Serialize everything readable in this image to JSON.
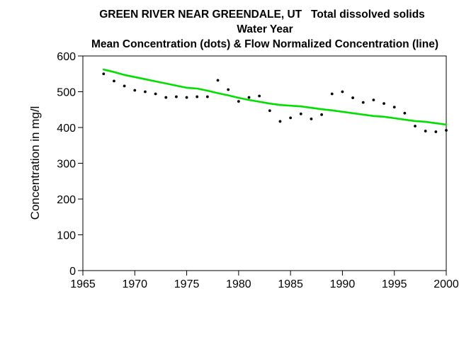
{
  "chart_data": {
    "type": "scatter",
    "title": "GREEN RIVER NEAR GREENDALE, UT   Total dissolved solids",
    "subtitle_lines": [
      "Water Year",
      "Mean Concentration (dots) & Flow Normalized Concentration (line)"
    ],
    "xlabel": "",
    "ylabel": "Concentration in mg/l",
    "xlim": [
      1965,
      2000
    ],
    "ylim": [
      0,
      600
    ],
    "x_ticks": [
      1965,
      1970,
      1975,
      1980,
      1985,
      1990,
      1995,
      2000
    ],
    "y_ticks": [
      0,
      100,
      200,
      300,
      400,
      500,
      600
    ],
    "grid": false,
    "series": [
      {
        "kind": "points",
        "color": "#000000",
        "x": [
          1967,
          1968,
          1969,
          1970,
          1971,
          1972,
          1973,
          1974,
          1975,
          1976,
          1977,
          1978,
          1979,
          1980,
          1981,
          1982,
          1983,
          1984,
          1985,
          1986,
          1987,
          1988,
          1989,
          1990,
          1991,
          1992,
          1993,
          1994,
          1995,
          1996,
          1997,
          1998,
          1999,
          2000
        ],
        "y": [
          550,
          530,
          516,
          504,
          500,
          494,
          484,
          486,
          484,
          486,
          486,
          532,
          506,
          473,
          484,
          488,
          447,
          417,
          427,
          438,
          424,
          436,
          494,
          500,
          483,
          470,
          477,
          467,
          457,
          440,
          404,
          390,
          388,
          392
        ]
      },
      {
        "kind": "line",
        "color": "#00e000",
        "x": [
          1967,
          1968,
          1969,
          1970,
          1971,
          1972,
          1973,
          1974,
          1975,
          1976,
          1977,
          1978,
          1979,
          1980,
          1981,
          1982,
          1983,
          1984,
          1985,
          1986,
          1987,
          1988,
          1989,
          1990,
          1991,
          1992,
          1993,
          1994,
          1995,
          1996,
          1997,
          1998,
          1999,
          2000
        ],
        "y": [
          562,
          555,
          547,
          541,
          535,
          529,
          523,
          517,
          511,
          509,
          503,
          496,
          490,
          483,
          477,
          472,
          467,
          463,
          461,
          459,
          455,
          451,
          448,
          444,
          440,
          436,
          432,
          430,
          426,
          422,
          418,
          416,
          412,
          408
        ]
      }
    ]
  }
}
